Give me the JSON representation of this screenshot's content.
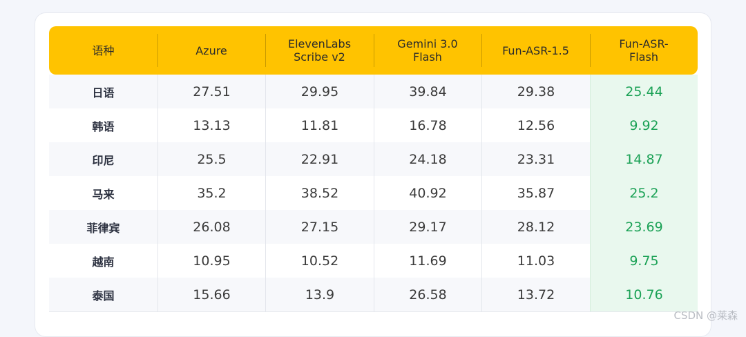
{
  "table": {
    "headers": [
      "语种",
      "Azure",
      "ElevenLabs\nScribe v2",
      "Gemini 3.0\nFlash",
      "Fun-ASR-1.5",
      "Fun-ASR-\nFlash"
    ],
    "rows": [
      {
        "lang": "日语",
        "azure": "27.51",
        "elevenlabs": "29.95",
        "gemini": "39.84",
        "funasr15": "29.38",
        "funasrflash": "25.44"
      },
      {
        "lang": "韩语",
        "azure": "13.13",
        "elevenlabs": "11.81",
        "gemini": "16.78",
        "funasr15": "12.56",
        "funasrflash": "9.92"
      },
      {
        "lang": "印尼",
        "azure": "25.5",
        "elevenlabs": "22.91",
        "gemini": "24.18",
        "funasr15": "23.31",
        "funasrflash": "14.87"
      },
      {
        "lang": "马来",
        "azure": "35.2",
        "elevenlabs": "38.52",
        "gemini": "40.92",
        "funasr15": "35.87",
        "funasrflash": "25.2"
      },
      {
        "lang": "菲律宾",
        "azure": "26.08",
        "elevenlabs": "27.15",
        "gemini": "29.17",
        "funasr15": "28.12",
        "funasrflash": "23.69"
      },
      {
        "lang": "越南",
        "azure": "10.95",
        "elevenlabs": "10.52",
        "gemini": "11.69",
        "funasr15": "11.03",
        "funasrflash": "9.75"
      },
      {
        "lang": "泰国",
        "azure": "15.66",
        "elevenlabs": "13.9",
        "gemini": "26.58",
        "funasr15": "13.72",
        "funasrflash": "10.76"
      }
    ]
  },
  "colors": {
    "header_bg": "#ffc300",
    "highlight_bg": "#e9f8ee",
    "highlight_text": "#1aa155"
  },
  "watermark": "CSDN @莱森"
}
